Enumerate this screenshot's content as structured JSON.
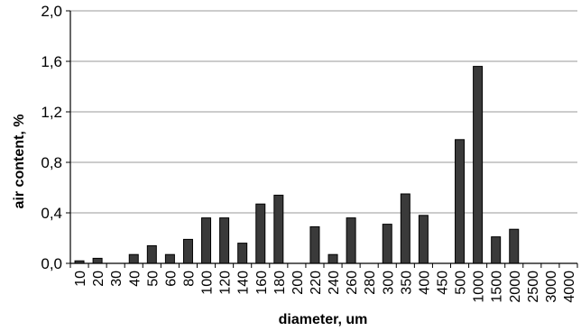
{
  "chart_data": {
    "type": "bar",
    "title": "",
    "xlabel": "diameter, um",
    "ylabel": "air content, %",
    "ylim": [
      0,
      2.0
    ],
    "yticks": [
      "0,0",
      "0,4",
      "0,8",
      "1,2",
      "1,6",
      "2,0"
    ],
    "ytick_values": [
      0,
      0.4,
      0.8,
      1.2,
      1.6,
      2.0
    ],
    "grid": true,
    "legend": "none",
    "bar_color": "#3a3a3a",
    "categories": [
      "10",
      "20",
      "30",
      "40",
      "50",
      "60",
      "80",
      "100",
      "120",
      "140",
      "160",
      "180",
      "200",
      "220",
      "240",
      "260",
      "280",
      "300",
      "350",
      "400",
      "450",
      "500",
      "1000",
      "1500",
      "2000",
      "2500",
      "3000",
      "4000"
    ],
    "values": [
      0.02,
      0.04,
      0,
      0.07,
      0.14,
      0.07,
      0.19,
      0.36,
      0.36,
      0.16,
      0.47,
      0.54,
      0,
      0.29,
      0.07,
      0.36,
      0,
      0.31,
      0.55,
      0.38,
      0,
      0.98,
      1.56,
      0.21,
      0.27,
      0,
      0,
      0
    ]
  }
}
